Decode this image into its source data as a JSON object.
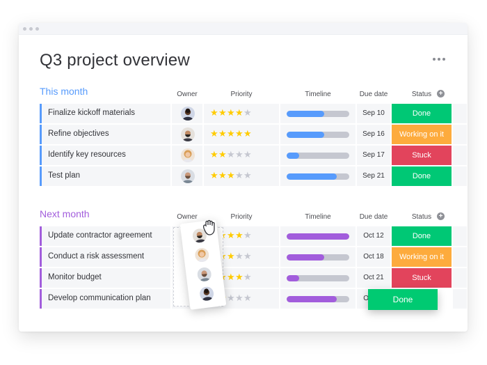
{
  "board": {
    "title": "Q3 project overview"
  },
  "columns": {
    "owner": "Owner",
    "priority": "Priority",
    "timeline": "Timeline",
    "due": "Due date",
    "status": "Status"
  },
  "colors": {
    "this_month": "#579bfc",
    "next_month": "#a25ddc",
    "done": "#00c875",
    "working": "#fdab3d",
    "stuck": "#e2445c",
    "star_on": "#ffcb00",
    "star_off": "#c5c7d0"
  },
  "groups": [
    {
      "name": "This month",
      "items": [
        {
          "name": "Finalize kickoff materials",
          "priority": 4,
          "timeline": 0.6,
          "due": "Sep 10",
          "status": "Done",
          "status_key": "done"
        },
        {
          "name": "Refine objectives",
          "priority": 5,
          "timeline": 0.6,
          "due": "Sep 16",
          "status": "Working on it",
          "status_key": "working"
        },
        {
          "name": "Identify key resources",
          "priority": 2,
          "timeline": 0.2,
          "due": "Sep 17",
          "status": "Stuck",
          "status_key": "stuck"
        },
        {
          "name": "Test plan",
          "priority": 3,
          "timeline": 0.8,
          "due": "Sep 21",
          "status": "Done",
          "status_key": "done"
        }
      ]
    },
    {
      "name": "Next month",
      "items": [
        {
          "name": "Update contractor agreement",
          "priority": 4,
          "timeline": 1.0,
          "due": "Oct 12",
          "status": "Done",
          "status_key": "done"
        },
        {
          "name": "Conduct a risk assessment",
          "priority": 3,
          "timeline": 0.6,
          "due": "Oct 18",
          "status": "Working on it",
          "status_key": "working"
        },
        {
          "name": "Monitor budget",
          "priority": 4,
          "timeline": 0.2,
          "due": "Oct 21",
          "status": "Stuck",
          "status_key": "stuck"
        },
        {
          "name": "Develop communication plan",
          "priority": 2,
          "timeline": 0.8,
          "due": "Oct 25",
          "status": "Done",
          "status_key": "done"
        }
      ]
    }
  ]
}
